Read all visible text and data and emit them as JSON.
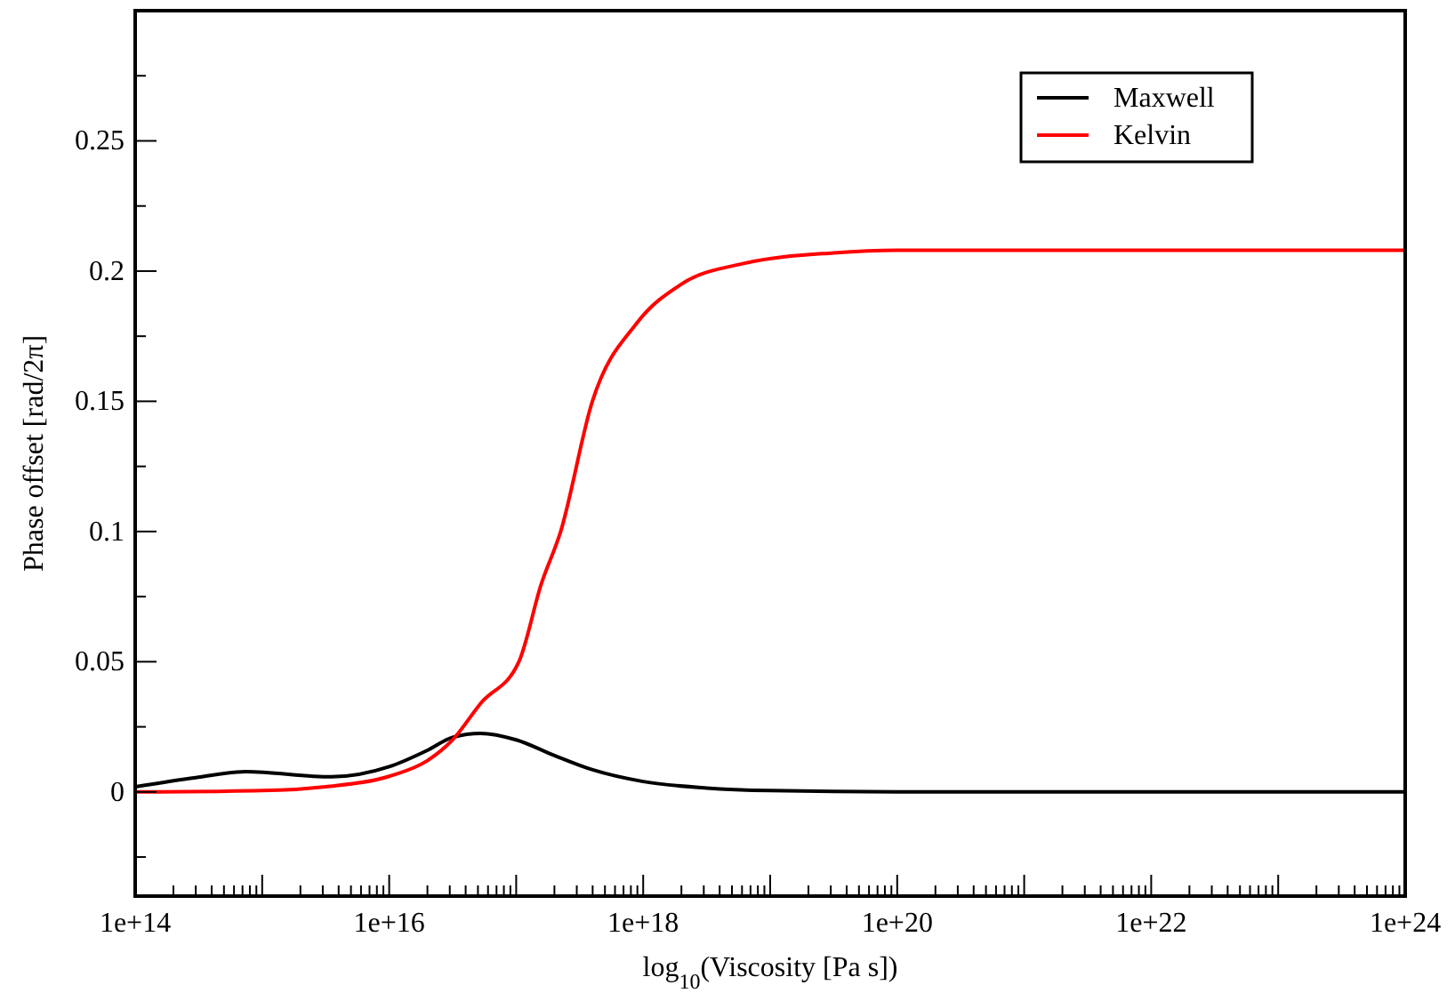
{
  "chart_data": {
    "type": "line",
    "xlabel": "log$_{10}$(Viscosity [Pa s])",
    "ylabel": "Phase offset [rad/2π]",
    "log": "x",
    "xlim": [
      100000000000000.0,
      1e+24
    ],
    "ylim": [
      -0.04,
      0.3
    ],
    "xticks": [
      {
        "value": 100000000000000.0,
        "label": "1e+14"
      },
      {
        "value": 200000000000000.0,
        "label": null
      },
      {
        "value": 300000000000000.0,
        "label": null
      },
      {
        "value": 400000000000000.0,
        "label": null
      },
      {
        "value": 500000000000000.0,
        "label": null
      },
      {
        "value": 600000000000000.0,
        "label": null
      },
      {
        "value": 700000000000000.0,
        "label": null
      },
      {
        "value": 800000000000000.0,
        "label": null
      },
      {
        "value": 900000000000000.0,
        "label": null
      },
      {
        "value": 1000000000000000.0,
        "label": null
      },
      {
        "value": 2000000000000000.0,
        "label": null
      },
      {
        "value": 3000000000000000.0,
        "label": null
      },
      {
        "value": 4000000000000000.0,
        "label": null
      },
      {
        "value": 5000000000000000.0,
        "label": null
      },
      {
        "value": 6000000000000000.0,
        "label": null
      },
      {
        "value": 7000000000000000.0,
        "label": null
      },
      {
        "value": 8000000000000000.0,
        "label": null
      },
      {
        "value": 9000000000000000.0,
        "label": null
      },
      {
        "value": 1e+16,
        "label": "1e+16"
      },
      {
        "value": 2e+16,
        "label": null
      },
      {
        "value": 3e+16,
        "label": null
      },
      {
        "value": 4e+16,
        "label": null
      },
      {
        "value": 5e+16,
        "label": null
      },
      {
        "value": 6e+16,
        "label": null
      },
      {
        "value": 7e+16,
        "label": null
      },
      {
        "value": 8e+16,
        "label": null
      },
      {
        "value": 9e+16,
        "label": null
      },
      {
        "value": 1e+17,
        "label": null
      },
      {
        "value": 2e+17,
        "label": null
      },
      {
        "value": 3e+17,
        "label": null
      },
      {
        "value": 4e+17,
        "label": null
      },
      {
        "value": 5e+17,
        "label": null
      },
      {
        "value": 6e+17,
        "label": null
      },
      {
        "value": 7e+17,
        "label": null
      },
      {
        "value": 8e+17,
        "label": null
      },
      {
        "value": 9e+17,
        "label": null
      },
      {
        "value": 1e+18,
        "label": "1e+18"
      },
      {
        "value": 2e+18,
        "label": null
      },
      {
        "value": 3e+18,
        "label": null
      },
      {
        "value": 4e+18,
        "label": null
      },
      {
        "value": 5e+18,
        "label": null
      },
      {
        "value": 6e+18,
        "label": null
      },
      {
        "value": 7e+18,
        "label": null
      },
      {
        "value": 8e+18,
        "label": null
      },
      {
        "value": 9e+18,
        "label": null
      },
      {
        "value": 1e+19,
        "label": null
      },
      {
        "value": 2e+19,
        "label": null
      },
      {
        "value": 3e+19,
        "label": null
      },
      {
        "value": 4e+19,
        "label": null
      },
      {
        "value": 5e+19,
        "label": null
      },
      {
        "value": 6e+19,
        "label": null
      },
      {
        "value": 7e+19,
        "label": null
      },
      {
        "value": 8e+19,
        "label": null
      },
      {
        "value": 9e+19,
        "label": null
      },
      {
        "value": 1e+20,
        "label": "1e+20"
      },
      {
        "value": 2e+20,
        "label": null
      },
      {
        "value": 3e+20,
        "label": null
      },
      {
        "value": 4e+20,
        "label": null
      },
      {
        "value": 5e+20,
        "label": null
      },
      {
        "value": 6e+20,
        "label": null
      },
      {
        "value": 7e+20,
        "label": null
      },
      {
        "value": 8e+20,
        "label": null
      },
      {
        "value": 9e+20,
        "label": null
      },
      {
        "value": 1e+21,
        "label": null
      },
      {
        "value": 2e+21,
        "label": null
      },
      {
        "value": 3e+21,
        "label": null
      },
      {
        "value": 4e+21,
        "label": null
      },
      {
        "value": 5e+21,
        "label": null
      },
      {
        "value": 6e+21,
        "label": null
      },
      {
        "value": 7e+21,
        "label": null
      },
      {
        "value": 8e+21,
        "label": null
      },
      {
        "value": 9e+21,
        "label": null
      },
      {
        "value": 1e+22,
        "label": "1e+22"
      },
      {
        "value": 2e+22,
        "label": null
      },
      {
        "value": 3e+22,
        "label": null
      },
      {
        "value": 4e+22,
        "label": null
      },
      {
        "value": 5e+22,
        "label": null
      },
      {
        "value": 6e+22,
        "label": null
      },
      {
        "value": 7e+22,
        "label": null
      },
      {
        "value": 8e+22,
        "label": null
      },
      {
        "value": 9e+22,
        "label": null
      },
      {
        "value": 1e+23,
        "label": null
      },
      {
        "value": 2e+23,
        "label": null
      },
      {
        "value": 3e+23,
        "label": null
      },
      {
        "value": 4e+23,
        "label": null
      },
      {
        "value": 5e+23,
        "label": null
      },
      {
        "value": 6e+23,
        "label": null
      },
      {
        "value": 7e+23,
        "label": null
      },
      {
        "value": 8e+23,
        "label": null
      },
      {
        "value": 9e+23,
        "label": null
      },
      {
        "value": 1e+24,
        "label": "1e+24"
      }
    ],
    "yticks": [
      {
        "value": -0.025,
        "label": null
      },
      0,
      {
        "value": 0.025,
        "label": null
      },
      0.05,
      {
        "value": 0.075,
        "label": null
      },
      0.1,
      {
        "value": 0.125,
        "label": null
      },
      0.15,
      {
        "value": 0.175,
        "label": null
      },
      0.2,
      {
        "value": 0.225,
        "label": null
      },
      0.25,
      {
        "value": 0.275,
        "label": null
      }
    ],
    "grid": false,
    "legend": "top right",
    "marker": "none",
    "line_style": "solid",
    "series": [
      {
        "name": "Maxwell",
        "color": "#000000",
        "x": [
          100000000000000.0,
          300000000000000.0,
          740000000000000.0,
          3500000000000000.0,
          1e+16,
          2e+16,
          3.16e+16,
          5.25e+16,
          1e+17,
          2e+17,
          4e+17,
          1e+18,
          3.16e+18,
          1e+19,
          1e+20,
          1e+24
        ],
        "values": [
          0.002,
          0.0055,
          0.0078,
          0.0058,
          0.0097,
          0.016,
          0.021,
          0.0225,
          0.02,
          0.014,
          0.0085,
          0.004,
          0.0015,
          0.0005,
          0,
          0
        ]
      },
      {
        "name": "Kelvin",
        "color": "#ff0000",
        "x": [
          100000000000000.0,
          1000000000000000.0,
          3160000000000000.0,
          1e+16,
          2e+16,
          3.16e+16,
          5.25e+16,
          1.05e+17,
          1.58e+17,
          2.24e+17,
          3.98e+17,
          8.9e+17,
          2e+18,
          6.3e+18,
          3.16e+19,
          1e+20,
          1e+24
        ],
        "values": [
          0,
          0.0005,
          0.002,
          0.006,
          0.012,
          0.02,
          0.034,
          0.05,
          0.08,
          0.1,
          0.15,
          0.18,
          0.195,
          0.203,
          0.207,
          0.208,
          0.208
        ]
      }
    ]
  }
}
